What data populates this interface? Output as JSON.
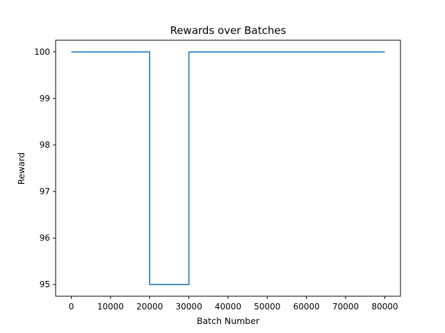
{
  "chart_data": {
    "type": "line",
    "title": "Rewards over Batches",
    "xlabel": "Batch Number",
    "ylabel": "Reward",
    "xlim": [
      -4000,
      84000
    ],
    "ylim": [
      94.75,
      100.25
    ],
    "xticks": [
      0,
      10000,
      20000,
      30000,
      40000,
      50000,
      60000,
      70000,
      80000
    ],
    "yticks": [
      95,
      96,
      97,
      98,
      99,
      100
    ],
    "grid": false,
    "legend": "none",
    "series": [
      {
        "color": "#1f77b4",
        "x": [
          0,
          20000,
          20000,
          30000,
          30000,
          80000
        ],
        "y": [
          100,
          100,
          95,
          95,
          100,
          100
        ]
      }
    ]
  }
}
